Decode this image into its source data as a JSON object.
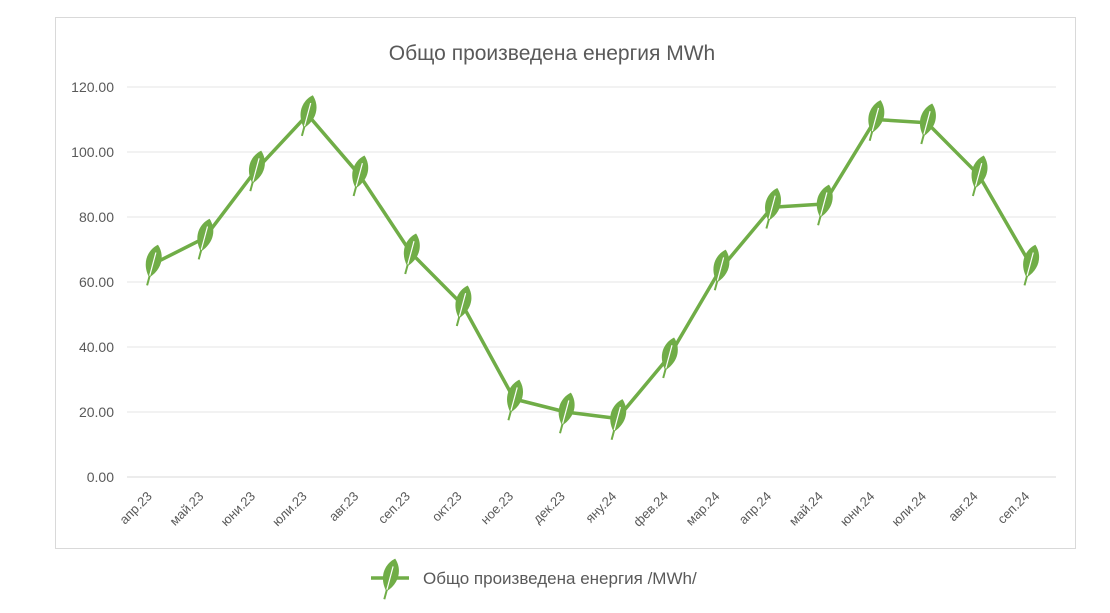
{
  "chart_data": {
    "type": "line",
    "title": "Общо произведена енергия MWh",
    "categories": [
      "апр.23",
      "май.23",
      "юни.23",
      "юли.23",
      "авг.23",
      "сеп.23",
      "окт.23",
      "ное.23",
      "дек.23",
      "яну.24",
      "фев.24",
      "мар.24",
      "апр.24",
      "май.24",
      "юни.24",
      "юли.24",
      "авг.24",
      "сеп.24"
    ],
    "y_tick_labels": [
      "0.00",
      "20.00",
      "40.00",
      "60.00",
      "80.00",
      "100.00",
      "120.00"
    ],
    "ylim": [
      0,
      120
    ],
    "grid": true,
    "legend_position": "bottom",
    "series": [
      {
        "name": "Общо произведена енергия /MWh/",
        "color": "#70AD47",
        "marker": "leaf-icon",
        "values": [
          65.5,
          73.5,
          94.5,
          111.5,
          93,
          69,
          53,
          24,
          20,
          18,
          37,
          64,
          83,
          84,
          110,
          109,
          93,
          65.5
        ]
      }
    ]
  }
}
